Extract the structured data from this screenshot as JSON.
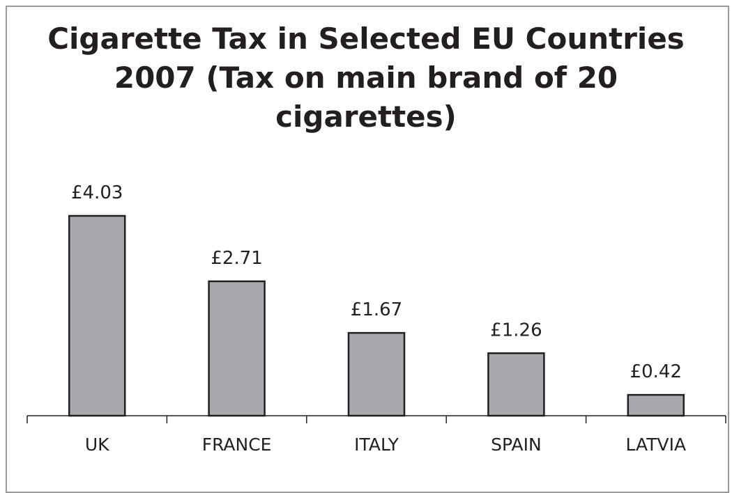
{
  "chart_data": {
    "type": "bar",
    "title_lines": [
      "Cigarette Tax in Selected EU Countries",
      "2007 (Tax on main brand of 20",
      "cigarettes)"
    ],
    "categories": [
      "UK",
      "FRANCE",
      "ITALY",
      "SPAIN",
      "LATVIA"
    ],
    "values": [
      4.03,
      2.71,
      1.67,
      1.26,
      0.42
    ],
    "data_labels": [
      "£4.03",
      "£2.71",
      "£1.67",
      "£1.26",
      "£0.42"
    ],
    "ylim": [
      0,
      4.03
    ],
    "grid": false,
    "legend": "none",
    "bar_color": "#a7a9ac",
    "edge_color": "#231f20"
  }
}
